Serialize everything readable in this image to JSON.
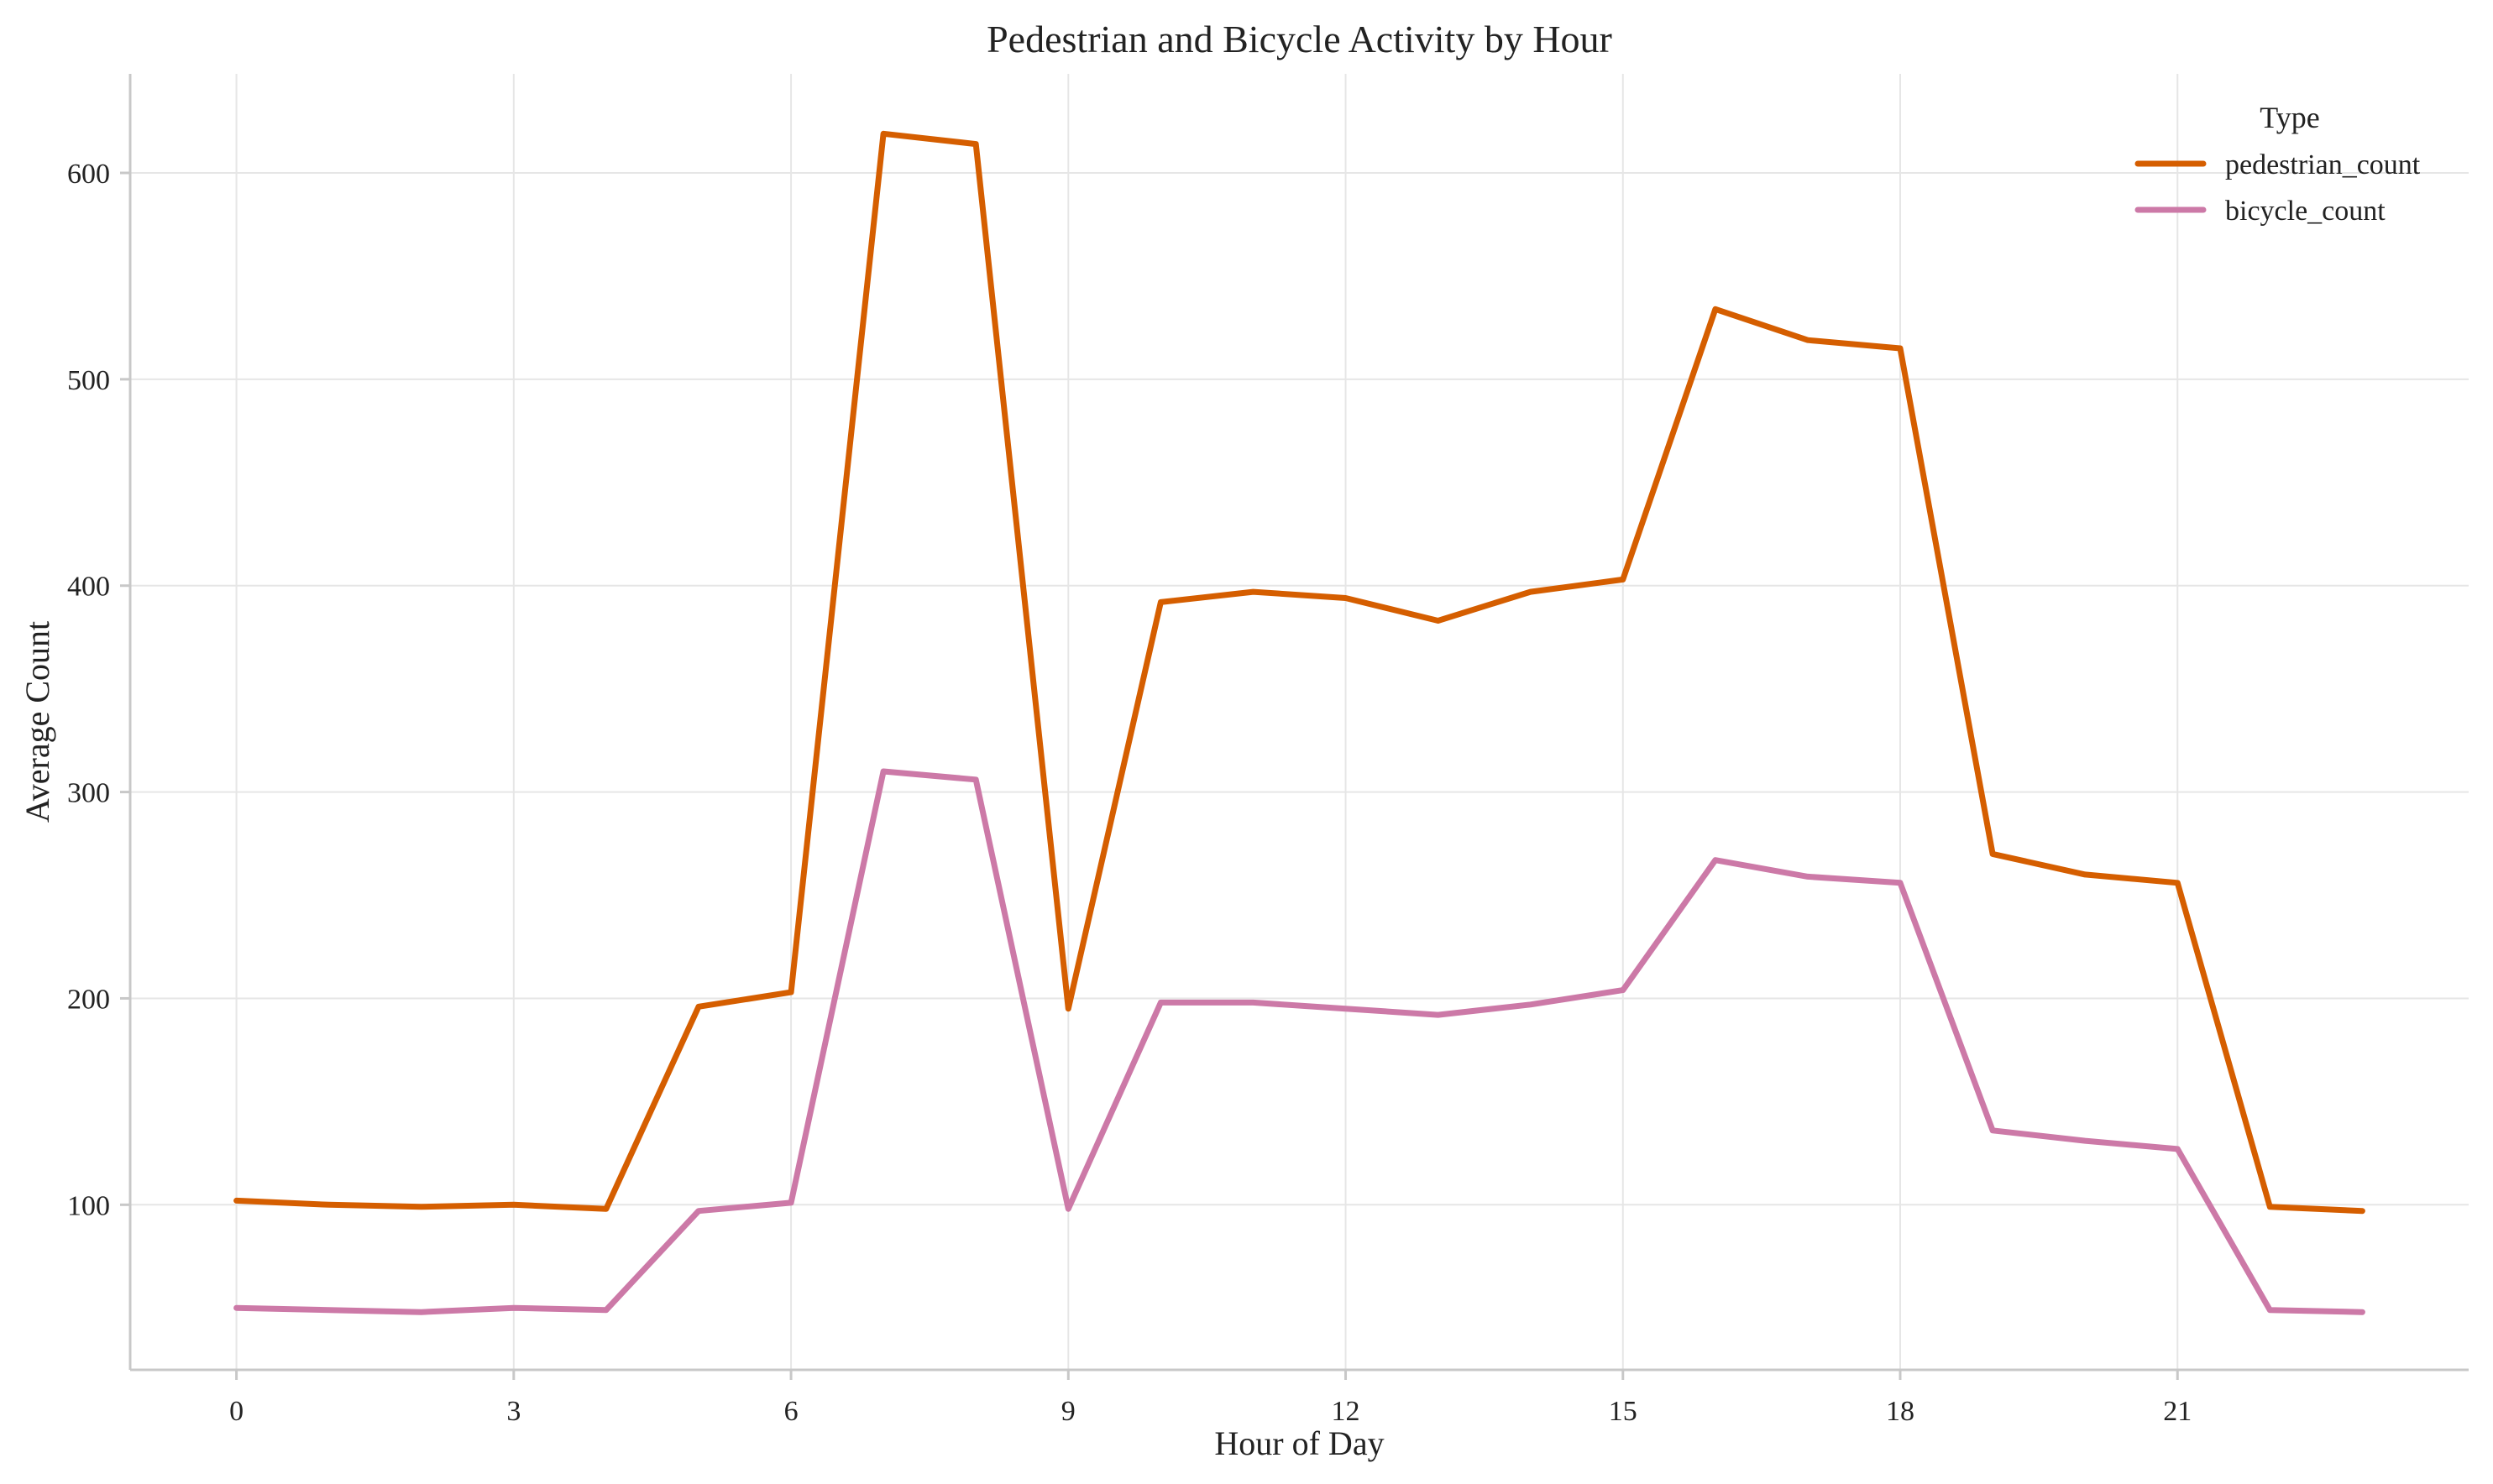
{
  "chart_data": {
    "type": "line",
    "title": "Pedestrian and Bicycle Activity by Hour",
    "xlabel": "Hour of Day",
    "ylabel": "Average Count",
    "x": [
      0,
      1,
      2,
      3,
      4,
      5,
      6,
      7,
      8,
      9,
      10,
      11,
      12,
      13,
      14,
      15,
      16,
      17,
      18,
      19,
      20,
      21,
      22,
      23
    ],
    "xticks": [
      0,
      3,
      6,
      9,
      12,
      15,
      18,
      21
    ],
    "yticks": [
      100,
      200,
      300,
      400,
      500,
      600
    ],
    "xlim": [
      -1.15,
      24.15
    ],
    "ylim": [
      20,
      648
    ],
    "grid": true,
    "legend": {
      "title": "Type",
      "placement": "top-right"
    },
    "series": [
      {
        "name": "pedestrian_count",
        "color": "#d55e00",
        "values": [
          102,
          100,
          99,
          100,
          98,
          196,
          203,
          619,
          614,
          195,
          392,
          397,
          394,
          383,
          397,
          403,
          534,
          519,
          515,
          270,
          260,
          256,
          99,
          97
        ]
      },
      {
        "name": "bicycle_count",
        "color": "#cc79a7",
        "values": [
          50,
          49,
          48,
          50,
          49,
          97,
          101,
          310,
          306,
          98,
          198,
          198,
          195,
          192,
          197,
          204,
          267,
          259,
          256,
          136,
          131,
          127,
          49,
          48
        ]
      }
    ]
  }
}
